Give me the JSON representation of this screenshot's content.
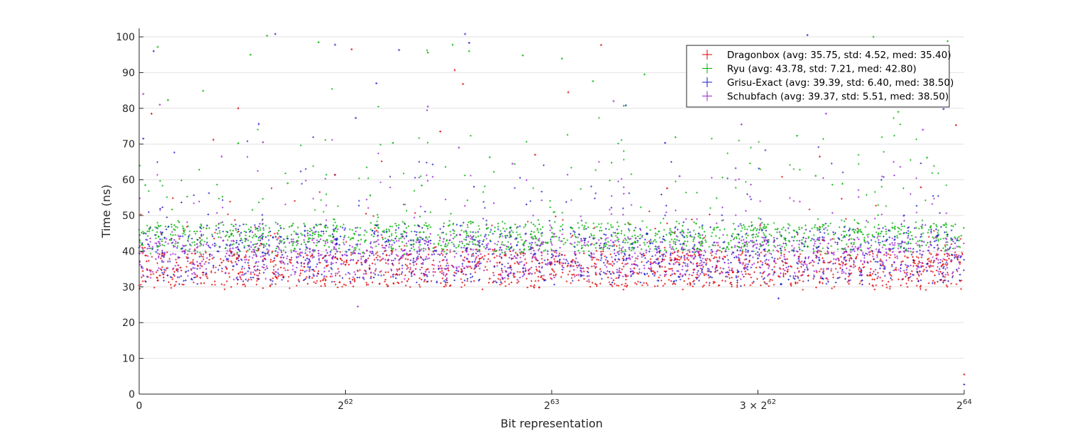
{
  "chart_data": {
    "type": "scatter",
    "title": "",
    "xlabel": "Bit representation",
    "ylabel": "Time (ns)",
    "xlim": [
      0,
      4
    ],
    "xunit": "2^62",
    "ylim": [
      0,
      100
    ],
    "grid": "horizontal",
    "legend_position": "top-right",
    "x_ticks": [
      {
        "value": 0,
        "base": "0",
        "exp": "",
        "prefix": ""
      },
      {
        "value": 1,
        "base": "2",
        "exp": "62",
        "prefix": ""
      },
      {
        "value": 2,
        "base": "2",
        "exp": "63",
        "prefix": ""
      },
      {
        "value": 3,
        "base": "2",
        "exp": "62",
        "prefix": "3 × "
      },
      {
        "value": 4,
        "base": "2",
        "exp": "64",
        "prefix": ""
      }
    ],
    "y_ticks": [
      0,
      10,
      20,
      30,
      40,
      50,
      60,
      70,
      80,
      90,
      100
    ],
    "series": [
      {
        "name": "Dragonbox (avg: 35.75, std: 4.52, med: 35.40)",
        "color": "#e00000",
        "avg": 35.75,
        "std": 4.52,
        "med": 35.4,
        "band": [
          30,
          40
        ],
        "points": [
          [
            0.0,
            30.5
          ],
          [
            0.1,
            33.2
          ],
          [
            0.2,
            35.4
          ],
          [
            0.3,
            31.0
          ],
          [
            0.4,
            36.8
          ],
          [
            0.5,
            34.1
          ],
          [
            0.6,
            37.5
          ],
          [
            0.7,
            32.9
          ],
          [
            0.8,
            35.6
          ],
          [
            0.9,
            30.8
          ],
          [
            1.0,
            36.2
          ],
          [
            1.1,
            33.7
          ],
          [
            1.2,
            38.9
          ],
          [
            1.3,
            31.6
          ],
          [
            1.4,
            35.0
          ],
          [
            1.5,
            34.6
          ],
          [
            1.6,
            37.0
          ],
          [
            1.7,
            32.3
          ],
          [
            1.8,
            35.9
          ],
          [
            1.9,
            30.3
          ],
          [
            2.0,
            36.5
          ],
          [
            2.1,
            33.4
          ],
          [
            2.2,
            38.2
          ],
          [
            2.3,
            31.9
          ],
          [
            2.4,
            35.2
          ],
          [
            2.5,
            34.0
          ],
          [
            2.6,
            37.8
          ],
          [
            2.7,
            32.6
          ],
          [
            2.8,
            35.7
          ],
          [
            2.9,
            31.2
          ],
          [
            3.0,
            36.9
          ],
          [
            3.1,
            33.0
          ],
          [
            3.2,
            38.5
          ],
          [
            3.3,
            31.4
          ],
          [
            3.4,
            35.3
          ],
          [
            3.5,
            34.4
          ],
          [
            3.6,
            37.2
          ],
          [
            3.7,
            32.1
          ],
          [
            3.8,
            35.8
          ],
          [
            3.9,
            31.7
          ],
          [
            4.0,
            5.5
          ],
          [
            0.36,
            71.2
          ],
          [
            0.06,
            78.5
          ],
          [
            1.03,
            96.5
          ],
          [
            1.57,
            86.8
          ],
          [
            1.53,
            90.7
          ],
          [
            2.08,
            84.5
          ],
          [
            1.46,
            73.5
          ],
          [
            0.95,
            61.4
          ],
          [
            3.01,
            47.2
          ],
          [
            3.3,
            66.5
          ],
          [
            3.96,
            75.3
          ],
          [
            0.48,
            80.0
          ],
          [
            2.56,
            57.6
          ],
          [
            1.92,
            67.0
          ],
          [
            2.24,
            97.7
          ],
          [
            3.79,
            57.9
          ]
        ]
      },
      {
        "name": "Ryu (avg: 43.78, std: 7.21, med: 42.80)",
        "color": "#00b000",
        "avg": 43.78,
        "std": 7.21,
        "med": 42.8,
        "band": [
          40,
          48
        ],
        "points": [
          [
            0.0,
            46.0
          ],
          [
            0.15,
            43.2
          ],
          [
            0.3,
            47.5
          ],
          [
            0.45,
            41.8
          ],
          [
            0.6,
            44.9
          ],
          [
            0.75,
            42.6
          ],
          [
            0.9,
            46.8
          ],
          [
            1.05,
            40.9
          ],
          [
            1.2,
            45.3
          ],
          [
            1.35,
            43.7
          ],
          [
            1.5,
            47.1
          ],
          [
            1.65,
            41.4
          ],
          [
            1.8,
            44.6
          ],
          [
            1.95,
            42.2
          ],
          [
            2.1,
            46.4
          ],
          [
            2.25,
            40.6
          ],
          [
            2.4,
            45.8
          ],
          [
            2.55,
            43.0
          ],
          [
            2.7,
            47.7
          ],
          [
            2.85,
            41.1
          ],
          [
            3.0,
            44.2
          ],
          [
            3.15,
            42.9
          ],
          [
            3.3,
            46.1
          ],
          [
            3.45,
            40.4
          ],
          [
            3.6,
            45.5
          ],
          [
            3.75,
            43.4
          ],
          [
            3.9,
            47.3
          ],
          [
            0.03,
            58.5
          ],
          [
            0.09,
            97.2
          ],
          [
            0.14,
            82.3
          ],
          [
            0.31,
            84.9
          ],
          [
            0.48,
            70.2
          ],
          [
            0.54,
            95.0
          ],
          [
            0.62,
            100.3
          ],
          [
            0.87,
            98.5
          ],
          [
            1.23,
            70.3
          ],
          [
            1.37,
            58.4
          ],
          [
            1.4,
            95.6
          ],
          [
            1.52,
            97.8
          ],
          [
            1.6,
            96.0
          ],
          [
            1.7,
            66.3
          ],
          [
            1.86,
            94.8
          ],
          [
            2.2,
            87.6
          ],
          [
            2.35,
            80.7
          ],
          [
            2.6,
            71.9
          ],
          [
            2.85,
            83.5
          ],
          [
            3.19,
            72.3
          ],
          [
            3.28,
            61.1
          ],
          [
            3.56,
            100.0
          ],
          [
            3.68,
            79.0
          ],
          [
            3.82,
            66.2
          ],
          [
            3.92,
            98.8
          ],
          [
            2.05,
            93.9
          ],
          [
            2.45,
            89.5
          ],
          [
            1.12,
            55.6
          ],
          [
            0.72,
            59.0
          ],
          [
            3.41,
            58.9
          ]
        ]
      },
      {
        "name": "Grisu-Exact (avg: 39.39, std: 6.40, med: 38.50)",
        "color": "#1a1ac8",
        "avg": 39.39,
        "std": 6.4,
        "med": 38.5,
        "band": [
          31,
          47
        ],
        "points": [
          [
            0.0,
            41.0
          ],
          [
            0.12,
            38.4
          ],
          [
            0.24,
            44.1
          ],
          [
            0.36,
            35.9
          ],
          [
            0.48,
            40.6
          ],
          [
            0.6,
            37.2
          ],
          [
            0.72,
            43.5
          ],
          [
            0.84,
            34.8
          ],
          [
            0.96,
            39.9
          ],
          [
            1.08,
            36.3
          ],
          [
            1.2,
            42.8
          ],
          [
            1.32,
            33.7
          ],
          [
            1.44,
            40.1
          ],
          [
            1.56,
            38.7
          ],
          [
            1.68,
            44.6
          ],
          [
            1.8,
            35.4
          ],
          [
            1.92,
            39.3
          ],
          [
            2.04,
            37.6
          ],
          [
            2.16,
            43.0
          ],
          [
            2.28,
            34.2
          ],
          [
            2.4,
            40.9
          ],
          [
            2.52,
            36.8
          ],
          [
            2.64,
            42.2
          ],
          [
            2.76,
            33.3
          ],
          [
            2.88,
            39.6
          ],
          [
            3.0,
            38.0
          ],
          [
            3.1,
            26.8
          ],
          [
            3.22,
            43.8
          ],
          [
            3.34,
            35.1
          ],
          [
            3.46,
            40.4
          ],
          [
            3.58,
            37.0
          ],
          [
            3.7,
            42.5
          ],
          [
            3.82,
            34.5
          ],
          [
            3.94,
            39.0
          ],
          [
            4.0,
            2.7
          ],
          [
            0.02,
            71.5
          ],
          [
            0.07,
            96.0
          ],
          [
            0.66,
            100.8
          ],
          [
            1.58,
            100.8
          ],
          [
            1.6,
            98.3
          ],
          [
            0.95,
            97.8
          ],
          [
            2.36,
            80.8
          ],
          [
            2.86,
            85.0
          ],
          [
            3.24,
            100.5
          ],
          [
            3.9,
            79.8
          ],
          [
            1.05,
            77.3
          ],
          [
            0.58,
            75.6
          ],
          [
            1.15,
            87.0
          ],
          [
            2.55,
            70.3
          ],
          [
            1.26,
            96.3
          ]
        ]
      },
      {
        "name": "Schubfach (avg: 39.37, std: 5.51, med: 38.50)",
        "color": "#9a22d0",
        "avg": 39.37,
        "std": 5.51,
        "med": 38.5,
        "band": [
          33,
          44
        ],
        "points": [
          [
            0.0,
            39.5
          ],
          [
            0.14,
            37.1
          ],
          [
            0.28,
            42.0
          ],
          [
            0.42,
            35.6
          ],
          [
            0.56,
            40.3
          ],
          [
            0.7,
            38.2
          ],
          [
            0.84,
            43.1
          ],
          [
            0.98,
            36.4
          ],
          [
            1.12,
            39.8
          ],
          [
            1.26,
            37.5
          ],
          [
            1.4,
            41.7
          ],
          [
            1.54,
            35.2
          ],
          [
            1.68,
            40.7
          ],
          [
            1.82,
            38.6
          ],
          [
            1.96,
            42.5
          ],
          [
            2.1,
            36.9
          ],
          [
            2.24,
            39.1
          ],
          [
            2.38,
            37.8
          ],
          [
            2.52,
            41.3
          ],
          [
            2.66,
            35.8
          ],
          [
            2.8,
            40.0
          ],
          [
            2.94,
            38.9
          ],
          [
            3.08,
            42.9
          ],
          [
            3.22,
            36.1
          ],
          [
            3.36,
            39.4
          ],
          [
            3.5,
            37.3
          ],
          [
            3.64,
            41.9
          ],
          [
            3.78,
            35.5
          ],
          [
            3.92,
            40.5
          ],
          [
            1.06,
            24.5
          ],
          [
            0.02,
            84.0
          ],
          [
            0.1,
            81.0
          ],
          [
            0.6,
            70.5
          ],
          [
            1.4,
            80.5
          ],
          [
            1.55,
            69.0
          ],
          [
            2.3,
            82.0
          ],
          [
            2.92,
            75.5
          ],
          [
            3.33,
            78.5
          ],
          [
            3.8,
            74.0
          ],
          [
            1.81,
            64.5
          ],
          [
            0.4,
            66.5
          ],
          [
            2.62,
            61.0
          ]
        ]
      }
    ]
  }
}
